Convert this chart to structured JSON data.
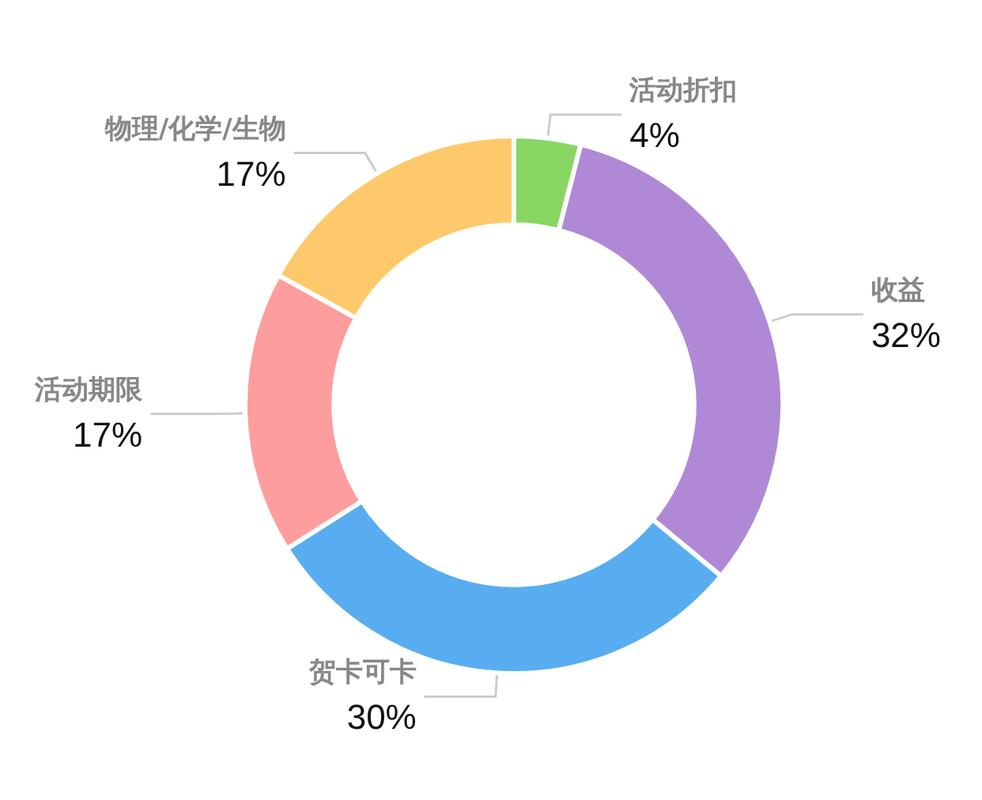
{
  "chart_data": {
    "type": "donut",
    "categories": [
      "活动折扣",
      "收益",
      "贺卡可卡",
      "活动期限",
      "物理/化学/生物"
    ],
    "values": [
      4,
      32,
      30,
      17,
      17
    ],
    "value_labels": [
      "4%",
      "32%",
      "30%",
      "17%",
      "17%"
    ],
    "colors": [
      "#88d662",
      "#b089d6",
      "#58adf1",
      "#fe9d9d",
      "#fec96b"
    ]
  }
}
